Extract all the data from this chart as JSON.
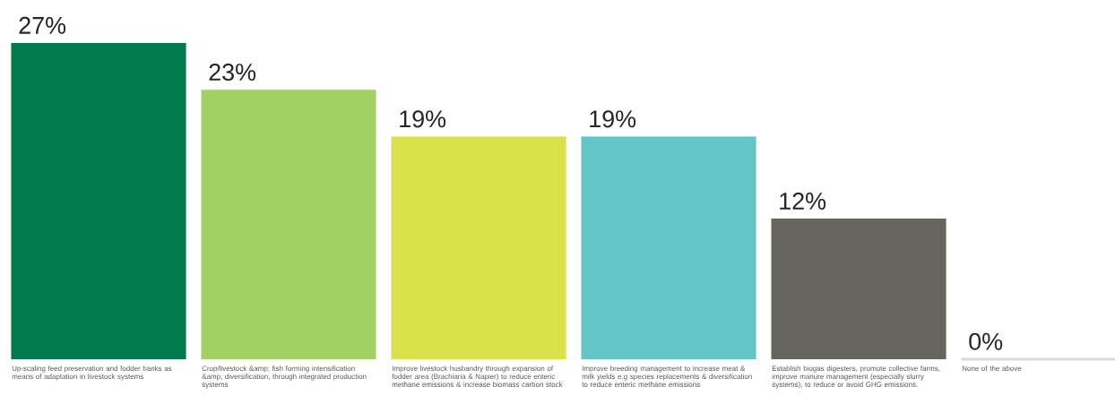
{
  "chart_data": {
    "type": "bar",
    "categories": [
      "Up-scaling feed preservation and fodder banks as means of adaptation in livestock systems",
      "Crop/livestock &amp; fish forming intensification &amp; diversification, through integrated production systems",
      "Improve livestock husbandry through expansion of fodder area (Brachiaria & Napier) to reduce enteric methane emissions & increase biomass carbon stock",
      "Improve breeding management to increase meat & milk yields e.g species replacements & diversification to reduce enteric methane emissions",
      "Establish biogas digesters, promote collective farms, improve manure management (especially slurry systems), to reduce or avoid GHG emissions.",
      "None of the above"
    ],
    "values": [
      27,
      23,
      19,
      19,
      12,
      0
    ],
    "value_labels": [
      "27%",
      "23%",
      "19%",
      "19%",
      "12%",
      "0%"
    ],
    "colors": [
      "#007a4b",
      "#a3d063",
      "#d9e24a",
      "#63c5c5",
      "#66665e",
      "#d9d9d9"
    ]
  }
}
